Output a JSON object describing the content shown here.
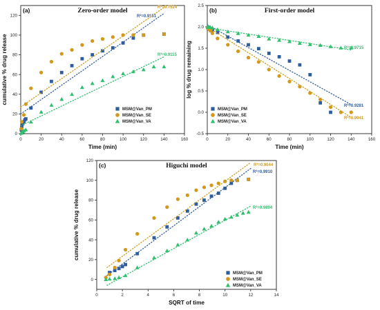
{
  "colors": {
    "PM": "#2e5d9e",
    "SE": "#d29a1c",
    "VA": "#2fbf6e"
  },
  "chart_data": [
    {
      "type": "scatter",
      "panel_letter": "(a)",
      "title": "Zero-order model",
      "xlabel": "Time (min)",
      "ylabel": "cumulative % drug release",
      "xlim": [
        0,
        160
      ],
      "ylim": [
        0,
        130
      ],
      "xticks": [
        0,
        20,
        40,
        60,
        80,
        100,
        120,
        140,
        160
      ],
      "yticks": [
        0,
        20,
        40,
        60,
        80,
        100,
        120
      ],
      "legend_position": "bottom-right",
      "series": [
        {
          "name": "MSM@Van_PM",
          "marker": "square",
          "color_key": "PM",
          "x": [
            0.5,
            1,
            2,
            3,
            4,
            5,
            10,
            20,
            30,
            40,
            50,
            60,
            70,
            80,
            90,
            100,
            110,
            120,
            140
          ],
          "y": [
            4,
            7,
            10,
            12,
            14,
            15,
            26,
            42,
            53,
            62,
            69,
            76,
            80,
            84,
            87,
            92,
            97,
            100,
            101
          ],
          "fit": {
            "x": [
              0,
              140
            ],
            "y": [
              20,
              122
            ]
          },
          "r2": "R²=0.9151"
        },
        {
          "name": "MSM@Van_SE",
          "marker": "circle",
          "color_key": "SE",
          "x": [
            0.5,
            1,
            3,
            5,
            10,
            20,
            30,
            40,
            50,
            60,
            70,
            80,
            90,
            100,
            110,
            120,
            140
          ],
          "y": [
            5,
            12,
            19,
            30,
            46,
            62,
            73,
            81,
            85,
            90,
            94,
            96,
            98,
            100,
            100,
            100,
            101
          ],
          "fit": {
            "x": [
              0,
              140
            ],
            "y": [
              27,
              128
            ]
          },
          "r2": "R²=0.7524"
        },
        {
          "name": "MSM@Van_VA",
          "marker": "triangle",
          "color_key": "VA",
          "x": [
            0.5,
            1,
            2,
            3,
            5,
            10,
            20,
            30,
            40,
            50,
            60,
            70,
            80,
            90,
            100,
            110,
            120,
            130,
            140
          ],
          "y": [
            0.5,
            1,
            2,
            3,
            4,
            12,
            22,
            29,
            35,
            40,
            47,
            51,
            54,
            58,
            61,
            63,
            65,
            68,
            68
          ],
          "fit": {
            "x": [
              0,
              140
            ],
            "y": [
              8,
              78
            ]
          },
          "r2": "R²=0.9115"
        }
      ]
    },
    {
      "type": "scatter",
      "panel_letter": "(b)",
      "title": "First-order model",
      "xlabel": "Time (min)",
      "ylabel": "log % drug remaining",
      "xlim": [
        0,
        160
      ],
      "ylim": [
        -0.5,
        2.5
      ],
      "xticks": [
        0,
        20,
        40,
        60,
        80,
        100,
        120,
        140,
        160
      ],
      "yticks": [
        -0.5,
        0.0,
        0.5,
        1.0,
        1.5,
        2.0,
        2.5
      ],
      "ytick_labels": [
        "-0.5",
        "0.0",
        "0.5",
        "1.0",
        "1.5",
        "2.0",
        "2.5"
      ],
      "legend_position": "bottom-left",
      "series": [
        {
          "name": "MSM@Van_PM",
          "marker": "square",
          "color_key": "PM",
          "x": [
            0.5,
            1,
            2,
            3,
            4,
            5,
            10,
            20,
            30,
            40,
            50,
            60,
            70,
            80,
            90,
            100,
            110,
            120
          ],
          "y": [
            1.98,
            1.97,
            1.95,
            1.94,
            1.93,
            1.93,
            1.87,
            1.76,
            1.67,
            1.58,
            1.49,
            1.38,
            1.3,
            1.2,
            1.11,
            0.88,
            0.22,
            0.0
          ],
          "fit": {
            "x": [
              0,
              140
            ],
            "y": [
              2.05,
              0.18
            ]
          },
          "r2": "R²=0.9281"
        },
        {
          "name": "MSM@Van_SE",
          "marker": "circle",
          "color_key": "SE",
          "x": [
            0.5,
            1,
            3,
            5,
            10,
            20,
            30,
            40,
            50,
            60,
            70,
            80,
            90,
            100,
            110,
            120,
            130,
            140
          ],
          "y": [
            1.98,
            1.96,
            1.91,
            1.85,
            1.73,
            1.58,
            1.43,
            1.28,
            1.18,
            1.0,
            0.85,
            0.72,
            0.6,
            0.45,
            0.3,
            0.12,
            0.0,
            0.0
          ],
          "fit": {
            "x": [
              0,
              140
            ],
            "y": [
              2.0,
              -0.12
            ]
          },
          "r2": "R²=0.9941"
        },
        {
          "name": "MSM@Van_VA",
          "marker": "triangle",
          "color_key": "VA",
          "x": [
            0.5,
            1,
            2,
            3,
            5,
            10,
            20,
            30,
            40,
            50,
            60,
            70,
            80,
            90,
            100,
            110,
            120,
            130,
            140
          ],
          "y": [
            2.0,
            2.0,
            1.99,
            1.99,
            1.98,
            1.94,
            1.89,
            1.85,
            1.81,
            1.78,
            1.72,
            1.69,
            1.66,
            1.62,
            1.59,
            1.57,
            1.54,
            1.51,
            1.51
          ],
          "fit": {
            "x": [
              0,
              140
            ],
            "y": [
              1.98,
              1.46
            ]
          },
          "r2": "R²=0.9715"
        }
      ]
    },
    {
      "type": "scatter",
      "panel_letter": "(c)",
      "title": "Higuchi model",
      "xlabel": "SQRT of time",
      "ylabel": "cumulative % drug release",
      "xlim": [
        0,
        14
      ],
      "ylim": [
        -10,
        120
      ],
      "xticks": [
        0,
        2,
        4,
        6,
        8,
        10,
        12,
        14
      ],
      "yticks": [
        0,
        20,
        40,
        60,
        80,
        100,
        120
      ],
      "legend_position": "bottom-right",
      "series": [
        {
          "name": "MSM@Van_PM",
          "marker": "square",
          "color_key": "PM",
          "x": [
            1.0,
            1.41,
            1.73,
            2.0,
            2.24,
            3.16,
            4.47,
            5.48,
            6.32,
            7.07,
            7.75,
            8.37,
            8.94,
            9.49,
            10.0,
            10.49,
            10.95,
            11.83
          ],
          "y": [
            7,
            9,
            11,
            13,
            15,
            26,
            42,
            53,
            62,
            69,
            76,
            80,
            84,
            87,
            92,
            97,
            100,
            101
          ],
          "fit": {
            "x": [
              0.8,
              12
            ],
            "y": [
              4,
              112
            ]
          },
          "r2": "R²=0.9910"
        },
        {
          "name": "MSM@Van_SE",
          "marker": "circle",
          "color_key": "SE",
          "x": [
            0.71,
            1.0,
            1.41,
            1.73,
            2.24,
            3.16,
            4.47,
            5.48,
            6.32,
            7.07,
            7.75,
            8.37,
            8.94,
            9.49,
            10.0,
            10.49,
            10.95,
            11.83
          ],
          "y": [
            2,
            5,
            12,
            19,
            30,
            46,
            62,
            73,
            81,
            85,
            90,
            93,
            95,
            97,
            99,
            100,
            100,
            101
          ],
          "fit": {
            "x": [
              0.8,
              12
            ],
            "y": [
              12,
              118
            ]
          },
          "r2": "R²=0.9044"
        },
        {
          "name": "MSM@Van_VA",
          "marker": "triangle",
          "color_key": "VA",
          "x": [
            0.71,
            1.0,
            1.41,
            1.73,
            2.24,
            3.16,
            4.47,
            5.48,
            6.32,
            7.07,
            7.75,
            8.37,
            8.94,
            9.49,
            10.0,
            10.49,
            10.95,
            11.4,
            11.83
          ],
          "y": [
            0,
            0.5,
            1,
            2,
            4,
            12,
            22,
            29,
            35,
            40,
            47,
            51,
            54,
            58,
            61,
            63,
            65,
            67,
            68
          ],
          "fit": {
            "x": [
              0.8,
              12
            ],
            "y": [
              -6,
              74
            ]
          },
          "r2": "R²=0.9894"
        }
      ]
    }
  ]
}
